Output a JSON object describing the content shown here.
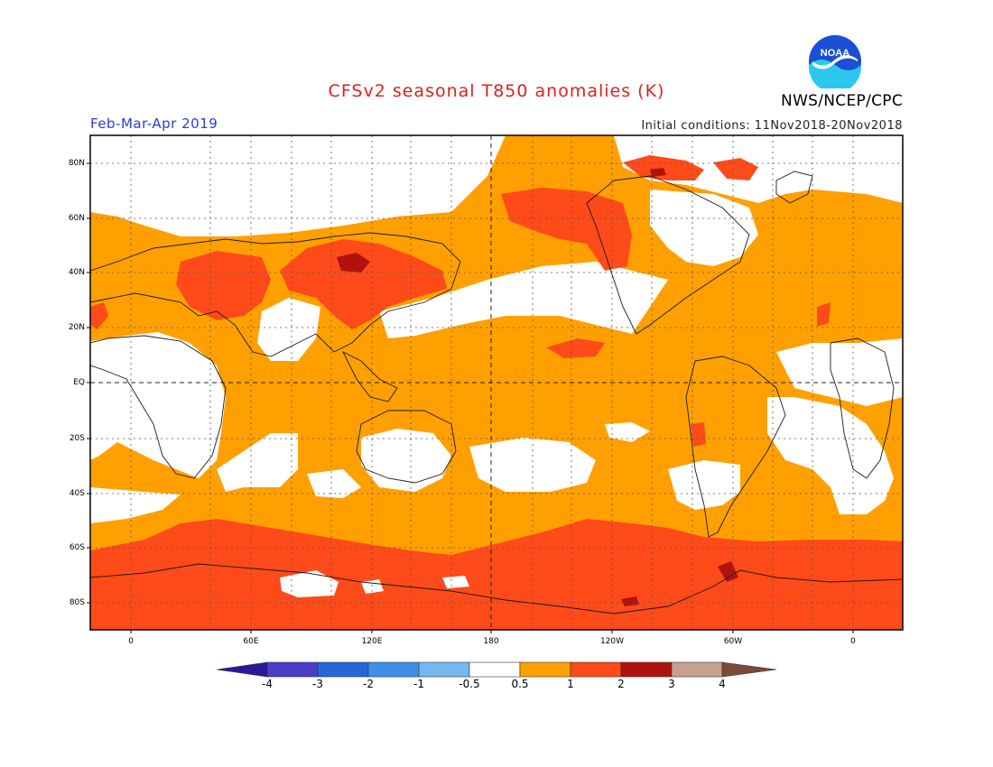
{
  "header": {
    "title": "CFSv2 seasonal T850 anomalies (K)",
    "period": "Feb-Mar-Apr 2019",
    "initial_conditions": "Initial conditions: 11Nov2018-20Nov2018",
    "agency": "NWS/NCEP/CPC",
    "logo_text": "NOAA"
  },
  "colors": {
    "title": "#e0201a",
    "period": "#2a3bd8",
    "logo_blue": "#1a4fd6",
    "logo_cyan": "#2cc7ef"
  },
  "map": {
    "lat_labels": [
      "80N",
      "60N",
      "40N",
      "20N",
      "EQ",
      "20S",
      "40S",
      "60S",
      "80S"
    ],
    "lon_labels": [
      "0",
      "60E",
      "120E",
      "180",
      "120W",
      "60W",
      "0"
    ]
  },
  "colorbar": {
    "labels": [
      "-4",
      "-3",
      "-2",
      "-1",
      "-0.5",
      "0.5",
      "1",
      "2",
      "3",
      "4"
    ],
    "colors": [
      "#2a1a9a",
      "#4a3ec8",
      "#2567d8",
      "#3e8fe8",
      "#78b8f0",
      "#ffffff",
      "#ffa000",
      "#ff4a1a",
      "#b0120e",
      "#c8a090",
      "#7a4a3a"
    ]
  }
}
